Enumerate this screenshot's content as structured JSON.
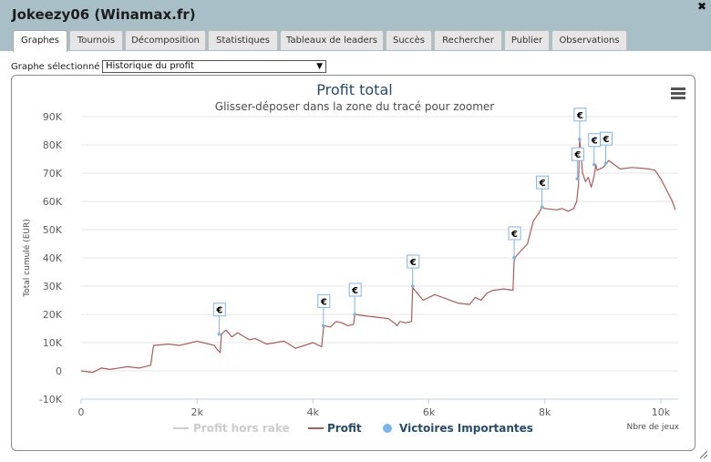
{
  "window": {
    "title": "Jokeezy06 (Winamax.fr)"
  },
  "tabs": [
    {
      "label": "Graphes",
      "active": true
    },
    {
      "label": "Tournois"
    },
    {
      "label": "Décomposition"
    },
    {
      "label": "Statistiques"
    },
    {
      "label": "Tableaux de leaders"
    },
    {
      "label": "Succès"
    },
    {
      "label": "Rechercher"
    },
    {
      "label": "Publier"
    },
    {
      "label": "Observations"
    }
  ],
  "graph_select": {
    "label": "Graphe sélectionné :",
    "value": "Historique du profit"
  },
  "chart_data": {
    "type": "line",
    "title": "Profit total",
    "subtitle": "Glisser-déposer dans la zone du tracé pour zoomer",
    "xlabel": "Nbre de jeux",
    "ylabel": "Total cumulé (EUR)",
    "xlim": [
      0,
      10300
    ],
    "ylim": [
      -10000,
      90000
    ],
    "x_ticks": [
      0,
      2000,
      4000,
      6000,
      8000,
      10000
    ],
    "x_tick_labels": [
      "0",
      "2k",
      "4k",
      "6k",
      "8k",
      "10k"
    ],
    "y_ticks": [
      -10000,
      0,
      10000,
      20000,
      30000,
      40000,
      50000,
      60000,
      70000,
      80000,
      90000
    ],
    "y_tick_labels": [
      "-10K",
      "0",
      "10K",
      "20K",
      "30K",
      "40K",
      "50K",
      "60K",
      "70K",
      "80K",
      "90K"
    ],
    "grid": "horizontal",
    "legend": "bottom",
    "series": [
      {
        "name": "Profit hors rake",
        "color": "#cccccc",
        "hidden": true
      },
      {
        "name": "Profit",
        "color": "#b05a5a",
        "x": [
          0,
          200,
          350,
          500,
          800,
          1000,
          1200,
          1250,
          1500,
          1700,
          1800,
          1900,
          2000,
          2100,
          2300,
          2350,
          2400,
          2420,
          2500,
          2600,
          2700,
          2900,
          3000,
          3200,
          3500,
          3700,
          4000,
          4100,
          4150,
          4180,
          4200,
          4300,
          4400,
          4500,
          4600,
          4700,
          4720,
          4900,
          5100,
          5300,
          5400,
          5450,
          5500,
          5600,
          5700,
          5720,
          5900,
          6100,
          6300,
          6500,
          6700,
          6800,
          6900,
          7000,
          7100,
          7300,
          7450,
          7470,
          7500,
          7700,
          7800,
          7900,
          7950,
          8000,
          8200,
          8300,
          8400,
          8500,
          8550,
          8580,
          8600,
          8650,
          8700,
          8750,
          8800,
          8850,
          8880,
          8900,
          9000,
          9050,
          9100,
          9300,
          9500,
          9800,
          9900,
          10000,
          10100,
          10200,
          10250
        ],
        "y": [
          0,
          -500,
          1000,
          500,
          1500,
          1000,
          2000,
          9000,
          9500,
          9000,
          9500,
          10000,
          10500,
          10000,
          9000,
          7500,
          6500,
          13000,
          14500,
          12000,
          13500,
          11000,
          11500,
          9500,
          10500,
          8000,
          10000,
          9000,
          8500,
          15000,
          16000,
          15500,
          17500,
          17000,
          16000,
          16500,
          20000,
          19500,
          19000,
          18500,
          17000,
          16000,
          17500,
          17000,
          17500,
          29500,
          25000,
          27000,
          25500,
          24000,
          23500,
          26000,
          25000,
          27500,
          28500,
          29000,
          28500,
          39000,
          40500,
          45000,
          53000,
          56000,
          58000,
          57500,
          57000,
          57500,
          56500,
          57500,
          60000,
          66000,
          82000,
          70000,
          67000,
          68500,
          65000,
          69000,
          73000,
          71000,
          72000,
          73000,
          74500,
          71500,
          72000,
          71500,
          71000,
          68000,
          64000,
          60000,
          57000
        ]
      },
      {
        "name": "Victoires Importantes",
        "color": "#7cb5ec",
        "type": "marker",
        "x": [
          2380,
          4180,
          4720,
          5720,
          7470,
          7950,
          8560,
          8600,
          8850,
          9050
        ],
        "y": [
          13000,
          16000,
          20000,
          30000,
          40000,
          58000,
          68000,
          82000,
          73000,
          73500
        ],
        "label": "€"
      }
    ]
  }
}
